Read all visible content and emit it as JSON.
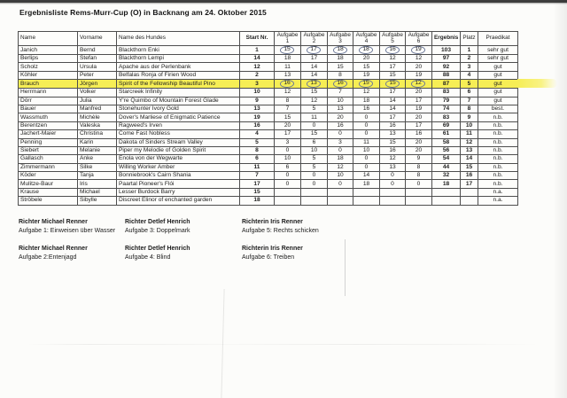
{
  "page_title": "Ergebnisliste Rems-Murr-Cup (O) in Backnang am 24. Oktober 2015",
  "colors": {
    "highlight_marker": "#f6ee55",
    "pen_circle": "#6e7a99"
  },
  "table": {
    "columns": [
      "Name",
      "Vorname",
      "Name des Hundes",
      "Start Nr.",
      "Aufgabe\n1",
      "Aufgabe 2",
      "Aufgabe 3",
      "Aufgabe 4",
      "Aufgabe 5",
      "Aufgabe 6",
      "Ergebnis",
      "Platz",
      "Praedikat"
    ],
    "rows": [
      {
        "name": "Janich",
        "vorname": "Bernd",
        "hund": "Blackthorn Enki",
        "start": "1",
        "aufgaben": [
          "15",
          "17",
          "18",
          "18",
          "16",
          "19"
        ],
        "ergebnis": "103",
        "platz": "1",
        "praedikat": "sehr gut",
        "circled": true,
        "highlight": false
      },
      {
        "name": "Berlips",
        "vorname": "Stefan",
        "hund": "Blackthorn Lempi",
        "start": "14",
        "aufgaben": [
          "18",
          "17",
          "18",
          "20",
          "12",
          "12"
        ],
        "ergebnis": "97",
        "platz": "2",
        "praedikat": "sehr gut",
        "circled": false,
        "highlight": false
      },
      {
        "name": "Scholz",
        "vorname": "Ursula",
        "hund": "Apache aus der Perlenbank",
        "start": "12",
        "aufgaben": [
          "11",
          "14",
          "15",
          "15",
          "17",
          "20"
        ],
        "ergebnis": "92",
        "platz": "3",
        "praedikat": "gut",
        "circled": false,
        "highlight": false
      },
      {
        "name": "Köhler",
        "vorname": "Peter",
        "hund": "Belfalas Ronja of Firien Wood",
        "start": "2",
        "aufgaben": [
          "13",
          "14",
          "8",
          "19",
          "15",
          "19"
        ],
        "ergebnis": "88",
        "platz": "4",
        "praedikat": "gut",
        "circled": false,
        "highlight": false
      },
      {
        "name": "Brauch",
        "vorname": "Jörgen",
        "hund": "Spirit of the Fellowship Beautiful Pino",
        "start": "3",
        "aufgaben": [
          "16",
          "13",
          "16",
          "15",
          "15",
          "12"
        ],
        "ergebnis": "87",
        "platz": "5",
        "praedikat": "gut",
        "circled": true,
        "highlight": true
      },
      {
        "name": "Herrmann",
        "vorname": "Volker",
        "hund": "Starcreek Infinity",
        "start": "10",
        "aufgaben": [
          "12",
          "15",
          "7",
          "12",
          "17",
          "20"
        ],
        "ergebnis": "83",
        "platz": "6",
        "praedikat": "gut",
        "circled": false,
        "highlight": false
      },
      {
        "name": "Dörr",
        "vorname": "Julia",
        "hund": "Y're Quimbo of Mountain Forest Glade",
        "start": "9",
        "aufgaben": [
          "8",
          "12",
          "10",
          "18",
          "14",
          "17"
        ],
        "ergebnis": "79",
        "platz": "7",
        "praedikat": "gut",
        "circled": false,
        "highlight": false
      },
      {
        "name": "Bauer",
        "vorname": "Manfred",
        "hund": "Stonehunter Ivory Gold",
        "start": "13",
        "aufgaben": [
          "7",
          "5",
          "13",
          "16",
          "14",
          "19"
        ],
        "ergebnis": "74",
        "platz": "8",
        "praedikat": "best.",
        "circled": false,
        "highlight": false
      },
      {
        "name": "Wassmuth",
        "vorname": "Michèle",
        "hund": "Dover's Marliese of Enigmatic Patience",
        "start": "19",
        "aufgaben": [
          "15",
          "11",
          "20",
          "0",
          "17",
          "20"
        ],
        "ergebnis": "83",
        "platz": "9",
        "praedikat": "n.b.",
        "circled": false,
        "highlight": false
      },
      {
        "name": "Berentzen",
        "vorname": "Valeska",
        "hund": "Ragweed's Irven",
        "start": "16",
        "aufgaben": [
          "20",
          "0",
          "16",
          "0",
          "16",
          "17"
        ],
        "ergebnis": "69",
        "platz": "10",
        "praedikat": "n.b.",
        "circled": false,
        "highlight": false
      },
      {
        "name": "Jachert-Maier",
        "vorname": "Christina",
        "hund": "Come Fast Nobless",
        "start": "4",
        "aufgaben": [
          "17",
          "15",
          "0",
          "0",
          "13",
          "16"
        ],
        "ergebnis": "61",
        "platz": "11",
        "praedikat": "n.b.",
        "circled": false,
        "highlight": false
      },
      {
        "name": "Penning",
        "vorname": "Karin",
        "hund": "Dakota of Sinders Stream Valley",
        "start": "5",
        "aufgaben": [
          "3",
          "6",
          "3",
          "11",
          "15",
          "20"
        ],
        "ergebnis": "58",
        "platz": "12",
        "praedikat": "n.b.",
        "circled": false,
        "highlight": false
      },
      {
        "name": "Siebert",
        "vorname": "Melanie",
        "hund": "Piper my Melodie of Golden Spirit",
        "start": "8",
        "aufgaben": [
          "0",
          "10",
          "0",
          "10",
          "16",
          "20"
        ],
        "ergebnis": "56",
        "platz": "13",
        "praedikat": "n.b.",
        "circled": false,
        "highlight": false
      },
      {
        "name": "Gallasch",
        "vorname": "Anke",
        "hund": "Enola von der Wegwarte",
        "start": "6",
        "aufgaben": [
          "10",
          "5",
          "18",
          "0",
          "12",
          "9"
        ],
        "ergebnis": "54",
        "platz": "14",
        "praedikat": "n.b.",
        "circled": false,
        "highlight": false
      },
      {
        "name": "Zimmermann",
        "vorname": "Silke",
        "hund": "Willing Worker Amber",
        "start": "11",
        "aufgaben": [
          "6",
          "5",
          "12",
          "0",
          "13",
          "8"
        ],
        "ergebnis": "44",
        "platz": "15",
        "praedikat": "n.b.",
        "circled": false,
        "highlight": false
      },
      {
        "name": "Köder",
        "vorname": "Tanja",
        "hund": "Bonniebrook's Cairn Shania",
        "start": "7",
        "aufgaben": [
          "0",
          "0",
          "10",
          "14",
          "0",
          "8"
        ],
        "ergebnis": "32",
        "platz": "16",
        "praedikat": "n.b.",
        "circled": false,
        "highlight": false
      },
      {
        "name": "Mulitze-Baur",
        "vorname": "Iris",
        "hund": "Paartal Pioneer's Flói",
        "start": "17",
        "aufgaben": [
          "0",
          "0",
          "0",
          "18",
          "0",
          "0"
        ],
        "ergebnis": "18",
        "platz": "17",
        "praedikat": "n.b.",
        "circled": false,
        "highlight": false
      },
      {
        "name": "Krause",
        "vorname": "Michael",
        "hund": "Lesser Burdock Barry",
        "start": "15",
        "aufgaben": [
          "",
          "",
          "",
          "",
          "",
          ""
        ],
        "ergebnis": "",
        "platz": "",
        "praedikat": "n.a.",
        "circled": false,
        "highlight": false
      },
      {
        "name": "Ströbele",
        "vorname": "Sibylle",
        "hund": "Discreet Elinor of enchanted garden",
        "start": "18",
        "aufgaben": [
          "",
          "",
          "",
          "",
          "",
          ""
        ],
        "ergebnis": "",
        "platz": "",
        "praedikat": "n.a.",
        "circled": false,
        "highlight": false
      }
    ]
  },
  "judges": {
    "columns": [
      {
        "entries": [
          {
            "name": "Richter Michael Renner",
            "task": "Aufgabe 1: Einweisen über Wasser"
          },
          {
            "name": "Richter Michael Renner",
            "task": "Aufgabe 2:Entenjagd"
          }
        ]
      },
      {
        "entries": [
          {
            "name": "Richter Detlef Henrich",
            "task": "Aufgabe 3: Doppelmark"
          },
          {
            "name": "Richter Detlef Henrich",
            "task": "Aufgabe 4: Blind"
          }
        ]
      },
      {
        "entries": [
          {
            "name": "Richterin Iris Renner",
            "task": "Aufgabe 5: Rechts schicken"
          },
          {
            "name": "Richterin Iris Renner",
            "task": "Aufgabe 6: Treiben"
          }
        ]
      }
    ]
  }
}
